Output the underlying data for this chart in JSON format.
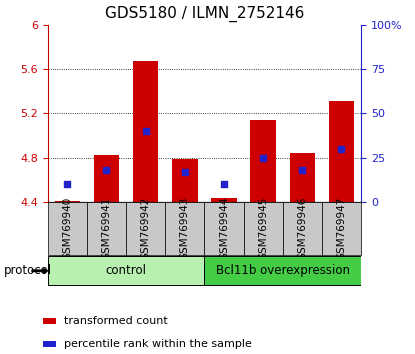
{
  "title": "GDS5180 / ILMN_2752146",
  "samples": [
    "GSM769940",
    "GSM769941",
    "GSM769942",
    "GSM769943",
    "GSM769944",
    "GSM769945",
    "GSM769946",
    "GSM769947"
  ],
  "red_values": [
    4.41,
    4.82,
    5.67,
    4.79,
    4.43,
    5.14,
    4.84,
    5.31
  ],
  "blue_values_pct": [
    10,
    18,
    40,
    17,
    10,
    25,
    18,
    30
  ],
  "ylim_left": [
    4.4,
    6.0
  ],
  "ylim_right": [
    0,
    100
  ],
  "yticks_left": [
    4.4,
    4.8,
    5.2,
    5.6,
    6.0
  ],
  "ytick_labels_left": [
    "4.4",
    "4.8",
    "5.2",
    "5.6",
    "6"
  ],
  "yticks_right": [
    0,
    25,
    50,
    75,
    100
  ],
  "ytick_labels_right": [
    "0",
    "25",
    "50",
    "75",
    "100%"
  ],
  "bar_bottom": 4.4,
  "group_colors": [
    "#b8f0b0",
    "#44cc44"
  ],
  "group_labels": [
    "control",
    "Bcl11b overexpression"
  ],
  "group_ranges": [
    [
      0,
      3
    ],
    [
      4,
      7
    ]
  ],
  "red_color": "#cc0000",
  "blue_color": "#2222cc",
  "bar_width": 0.65,
  "label_bg_color": "#c8c8c8",
  "protocol_label": "protocol",
  "legend1": "transformed count",
  "legend2": "percentile rank within the sample",
  "title_fontsize": 11,
  "tick_fontsize": 8,
  "label_fontsize": 7.5,
  "axis_color_left": "#cc0000",
  "axis_color_right": "#2222cc",
  "dotted_lines": [
    4.8,
    5.2,
    5.6
  ],
  "grid_color": "black",
  "grid_lw": 0.6
}
